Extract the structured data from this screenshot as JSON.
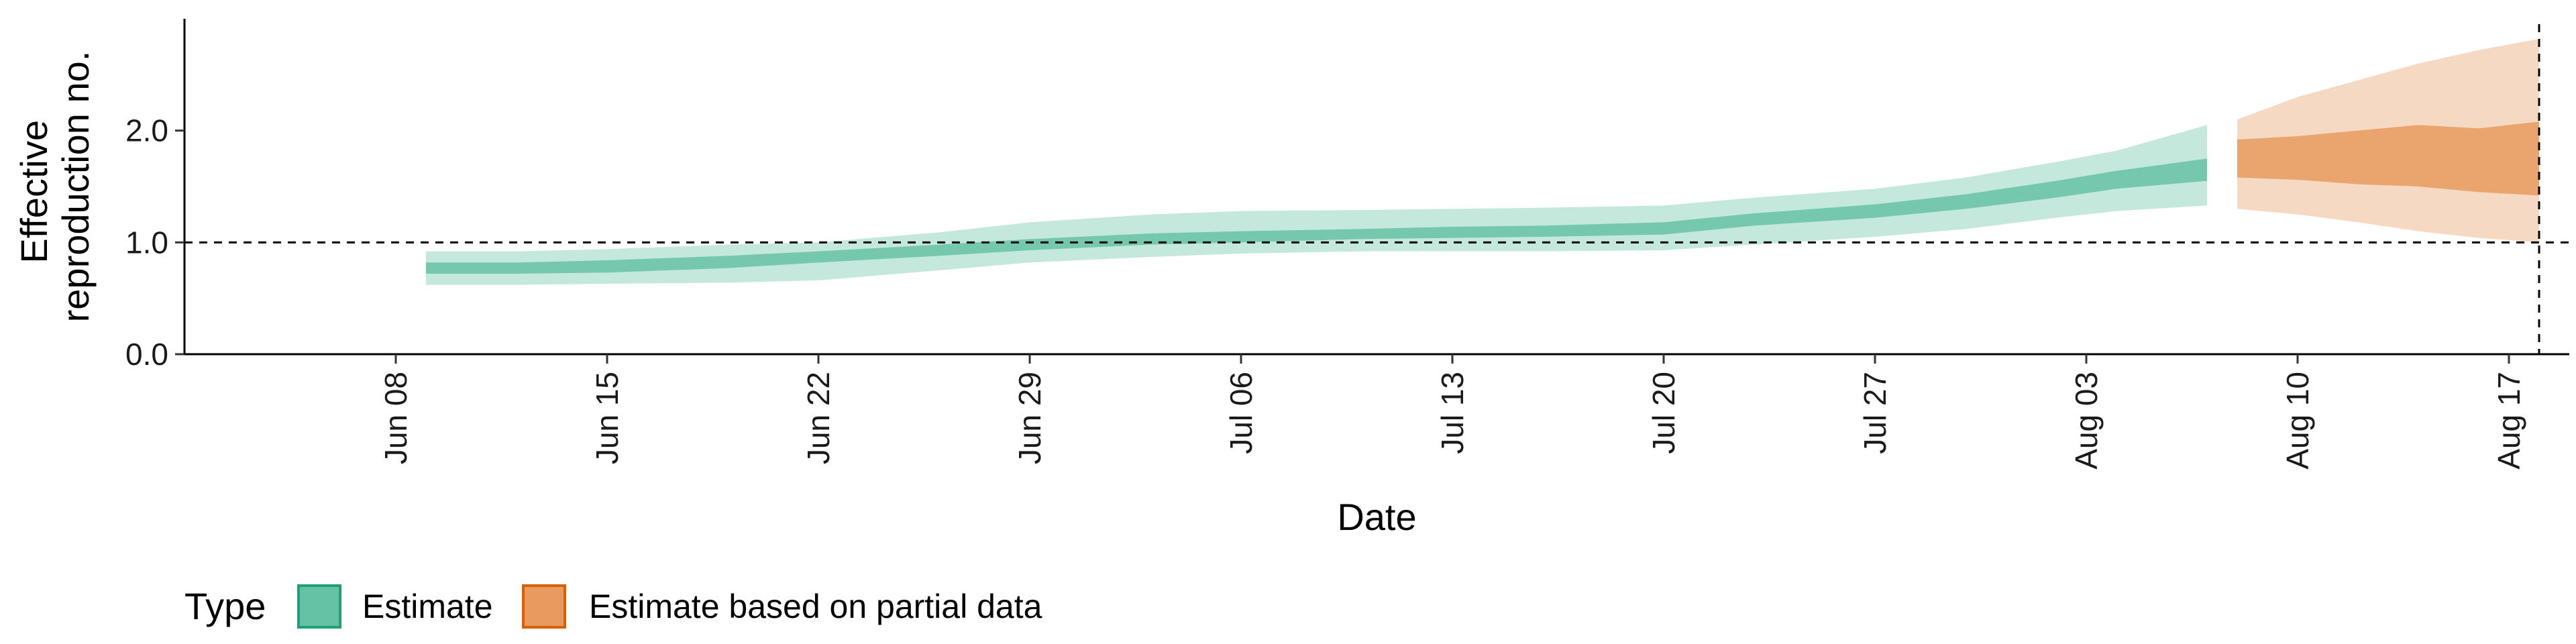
{
  "chart_data": {
    "type": "area",
    "title": "",
    "xlabel": "Date",
    "ylabel": "Effective reproduction no.",
    "ylabel_lines": [
      "Effective",
      "reproduction no."
    ],
    "ylim": [
      0.0,
      3.0
    ],
    "yticks": [
      0.0,
      1.0,
      2.0
    ],
    "ytick_labels": [
      "0.0",
      "1.0",
      "2.0"
    ],
    "xlim": [
      "2020-06-01",
      "2020-08-19"
    ],
    "xticks": [
      "2020-06-08",
      "2020-06-15",
      "2020-06-22",
      "2020-06-29",
      "2020-07-06",
      "2020-07-13",
      "2020-07-20",
      "2020-07-27",
      "2020-08-03",
      "2020-08-10",
      "2020-08-17"
    ],
    "xtick_labels": [
      "Jun 08",
      "Jun 15",
      "Jun 22",
      "Jun 29",
      "Jul 06",
      "Jul 13",
      "Jul 20",
      "Jul 27",
      "Aug 03",
      "Aug 10",
      "Aug 17"
    ],
    "reference_hline": 1.0,
    "reference_vline": "2020-08-18",
    "grid": false,
    "legend": {
      "title": "Type",
      "placement": "bottom-left"
    },
    "series": [
      {
        "name": "Estimate",
        "color": "#66C2A5",
        "x": [
          "2020-06-09",
          "2020-06-12",
          "2020-06-15",
          "2020-06-19",
          "2020-06-22",
          "2020-06-26",
          "2020-06-29",
          "2020-07-03",
          "2020-07-06",
          "2020-07-10",
          "2020-07-13",
          "2020-07-16",
          "2020-07-20",
          "2020-07-23",
          "2020-07-27",
          "2020-07-30",
          "2020-08-02",
          "2020-08-04",
          "2020-08-07"
        ],
        "lower90": [
          0.62,
          0.62,
          0.63,
          0.64,
          0.66,
          0.75,
          0.82,
          0.87,
          0.9,
          0.92,
          0.92,
          0.92,
          0.93,
          0.98,
          1.05,
          1.12,
          1.22,
          1.28,
          1.33
        ],
        "lower50": [
          0.72,
          0.72,
          0.73,
          0.77,
          0.82,
          0.88,
          0.93,
          0.98,
          1.0,
          1.03,
          1.04,
          1.05,
          1.07,
          1.15,
          1.22,
          1.3,
          1.4,
          1.48,
          1.55
        ],
        "upper50": [
          0.82,
          0.82,
          0.84,
          0.88,
          0.92,
          0.98,
          1.03,
          1.08,
          1.1,
          1.12,
          1.14,
          1.15,
          1.18,
          1.26,
          1.34,
          1.43,
          1.55,
          1.64,
          1.75
        ],
        "upper90": [
          0.92,
          0.92,
          0.94,
          0.98,
          1.0,
          1.09,
          1.18,
          1.25,
          1.28,
          1.29,
          1.3,
          1.31,
          1.33,
          1.4,
          1.48,
          1.58,
          1.72,
          1.82,
          2.05
        ]
      },
      {
        "name": "Estimate based on partial data",
        "color": "#E89A5F",
        "x": [
          "2020-08-08",
          "2020-08-10",
          "2020-08-12",
          "2020-08-14",
          "2020-08-16",
          "2020-08-18"
        ],
        "lower90": [
          1.3,
          1.25,
          1.18,
          1.1,
          1.04,
          1.0
        ],
        "lower50": [
          1.58,
          1.56,
          1.52,
          1.5,
          1.45,
          1.42
        ],
        "upper50": [
          1.92,
          1.95,
          2.0,
          2.05,
          2.02,
          2.08
        ],
        "upper90": [
          2.1,
          2.3,
          2.45,
          2.6,
          2.72,
          2.82
        ]
      }
    ]
  }
}
